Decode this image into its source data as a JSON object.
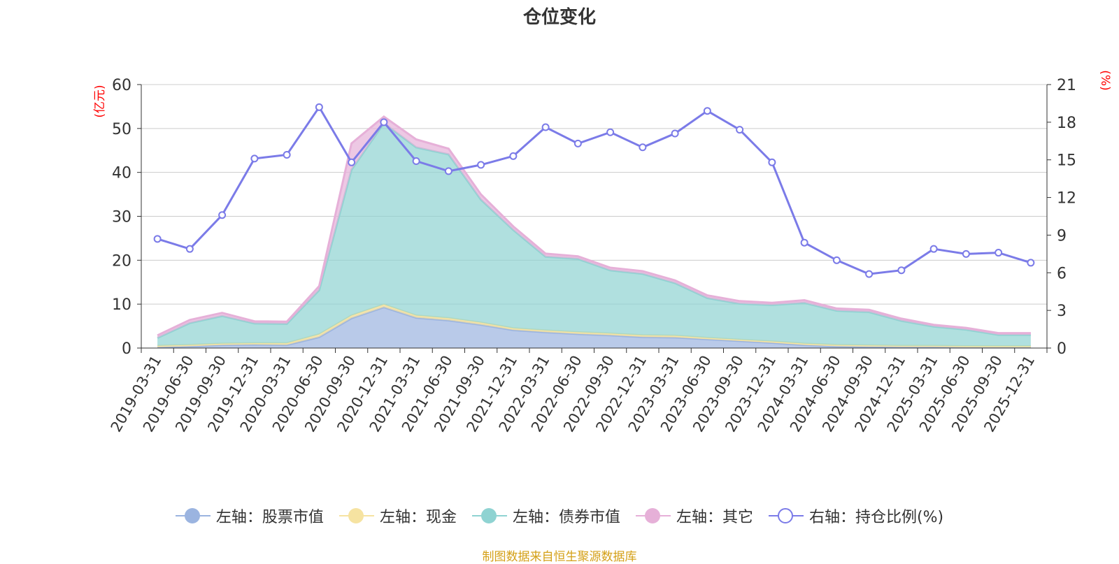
{
  "chart_data": {
    "type": "area",
    "title": "仓位变化",
    "left_axis_unit": "(亿元)",
    "right_axis_unit": "(%)",
    "ylim_left": [
      0,
      60
    ],
    "yticks_left": [
      0,
      10,
      20,
      30,
      40,
      50,
      60
    ],
    "ylim_right": [
      0,
      21
    ],
    "yticks_right": [
      0,
      3,
      6,
      9,
      12,
      15,
      18,
      21
    ],
    "categories": [
      "2019-03-31",
      "2019-06-30",
      "2019-09-30",
      "2019-12-31",
      "2020-03-31",
      "2020-06-30",
      "2020-09-30",
      "2020-12-31",
      "2021-03-31",
      "2021-06-30",
      "2021-09-30",
      "2021-12-31",
      "2022-03-31",
      "2022-06-30",
      "2022-09-30",
      "2022-12-31",
      "2023-03-31",
      "2023-06-30",
      "2023-09-30",
      "2023-12-31",
      "2024-03-31",
      "2024-06-30",
      "2024-09-30",
      "2024-12-31",
      "2025-03-31",
      "2025-06-30",
      "2025-09-30",
      "2025-12-31"
    ],
    "series": [
      {
        "name": "左轴：股票市值",
        "axis": "left",
        "color": "#9bb4e0",
        "values": [
          0.2,
          0.4,
          0.7,
          0.8,
          0.7,
          2.5,
          6.8,
          9.3,
          6.9,
          6.3,
          5.3,
          4.1,
          3.6,
          3.2,
          2.9,
          2.5,
          2.4,
          2.0,
          1.6,
          1.2,
          0.7,
          0.4,
          0.3,
          0.3,
          0.3,
          0.2,
          0.2,
          0.2
        ]
      },
      {
        "name": "左轴：现金",
        "axis": "left",
        "color": "#f6e3a1",
        "values": [
          0.3,
          0.3,
          0.3,
          0.3,
          0.4,
          0.6,
          0.6,
          0.6,
          0.5,
          0.5,
          0.5,
          0.4,
          0.4,
          0.4,
          0.4,
          0.4,
          0.4,
          0.3,
          0.3,
          0.3,
          0.3,
          0.3,
          0.3,
          0.2,
          0.2,
          0.2,
          0.2,
          0.2
        ]
      },
      {
        "name": "左轴：债券市值",
        "axis": "left",
        "color": "#8fd3d2",
        "values": [
          1.8,
          5.0,
          6.3,
          4.5,
          4.4,
          10.1,
          33.2,
          41.3,
          38.3,
          37.3,
          28.0,
          22.4,
          16.8,
          16.7,
          14.4,
          14.0,
          12.0,
          9.1,
          8.2,
          8.3,
          9.3,
          7.8,
          7.6,
          5.7,
          4.4,
          3.8,
          2.6,
          2.6
        ]
      },
      {
        "name": "左轴：其它",
        "axis": "left",
        "color": "#e6b0d8",
        "values": [
          0.6,
          0.7,
          0.7,
          0.5,
          0.5,
          0.9,
          6.0,
          1.5,
          1.8,
          1.3,
          1.2,
          0.8,
          0.7,
          0.6,
          0.6,
          0.6,
          0.6,
          0.6,
          0.6,
          0.5,
          0.6,
          0.5,
          0.5,
          0.5,
          0.4,
          0.4,
          0.4,
          0.4
        ]
      },
      {
        "name": "右轴：持仓比例(%)",
        "axis": "right",
        "color": "#7b7be8",
        "values": [
          8.7,
          7.9,
          10.6,
          15.1,
          15.4,
          19.2,
          14.8,
          18.0,
          14.9,
          14.1,
          14.6,
          15.3,
          17.6,
          16.3,
          17.2,
          16.0,
          17.1,
          18.9,
          17.4,
          14.8,
          8.4,
          7.0,
          5.9,
          6.2,
          7.9,
          7.5,
          7.6,
          6.8
        ]
      }
    ],
    "legend_position": "bottom",
    "source": "制图数据来自恒生聚源数据库"
  }
}
